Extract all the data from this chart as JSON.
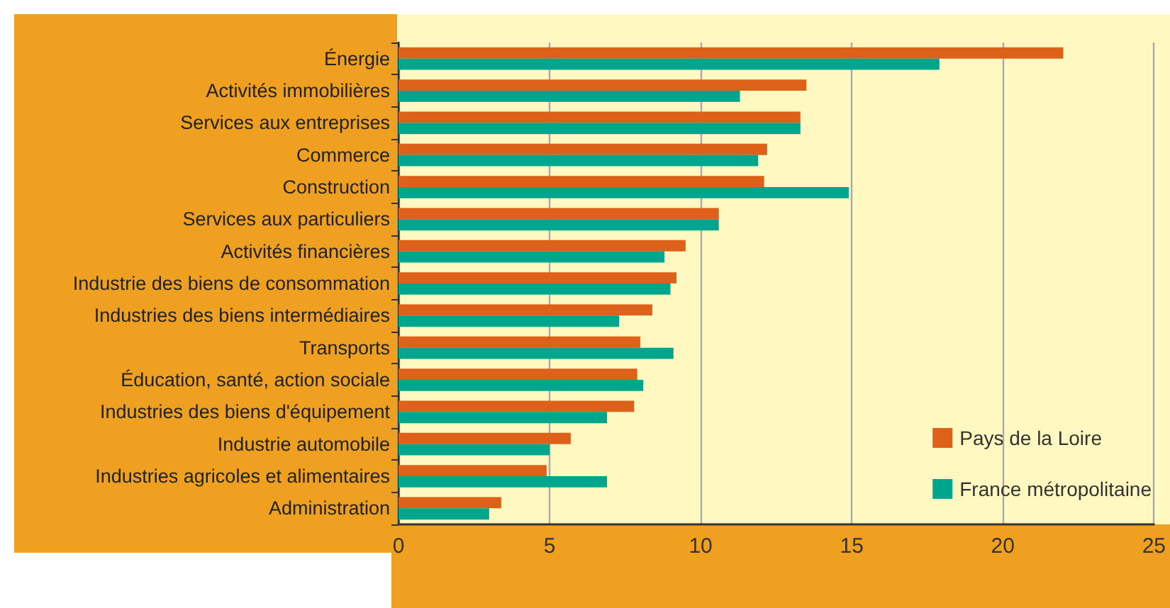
{
  "chart_data": {
    "type": "bar",
    "orientation": "horizontal",
    "categories": [
      "Énergie",
      "Activités immobilières",
      "Services aux entreprises",
      "Commerce",
      "Construction",
      "Services aux particuliers",
      "Activités financières",
      "Industrie des biens de consommation",
      "Industries des biens intermédiaires",
      "Transports",
      "Éducation, santé, action sociale",
      "Industries des biens d'équipement",
      "Industrie automobile",
      "Industries agricoles et alimentaires",
      "Administration"
    ],
    "series": [
      {
        "name": "Pays de la Loire",
        "color": "#dd6119",
        "values": [
          22.0,
          13.5,
          13.3,
          12.2,
          12.1,
          10.6,
          9.5,
          9.2,
          8.4,
          8.0,
          7.9,
          7.8,
          5.7,
          4.9,
          3.4
        ]
      },
      {
        "name": "France métropolitaine",
        "color": "#00a58d",
        "values": [
          17.9,
          11.3,
          13.3,
          11.9,
          14.9,
          10.6,
          8.8,
          9.0,
          7.3,
          9.1,
          8.1,
          6.9,
          5.0,
          6.9,
          3.0
        ]
      }
    ],
    "xlim": [
      0,
      25
    ],
    "xticks": [
      0,
      5,
      10,
      15,
      20,
      25
    ],
    "grid": "x",
    "legend": "bottom right"
  }
}
